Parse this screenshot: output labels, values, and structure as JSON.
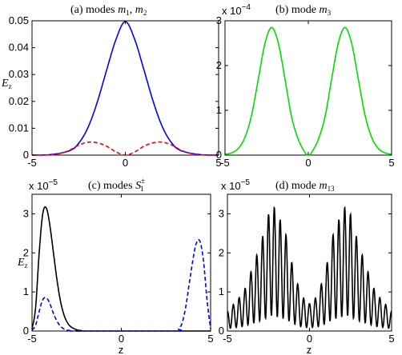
{
  "chart_data": [
    {
      "type": "line",
      "title_text": "(a) modes ",
      "title_m1": "m",
      "title_m1_sub": "1",
      "title_sep": ", ",
      "title_m2": "m",
      "title_m2_sub": "2",
      "ylabel": "E",
      "ylabel_sub": "z",
      "xlim": [
        -5,
        5
      ],
      "ylim": [
        0,
        0.05
      ],
      "xticks": [
        "-5",
        "0",
        "5"
      ],
      "yticks": [
        "0",
        "0.01",
        "0.02",
        "0.03",
        "0.04",
        "0.05"
      ],
      "series": [
        {
          "color": "#0000ff",
          "style": "solid",
          "x": [
            -5,
            -4,
            -3,
            -2.5,
            -2,
            -1.5,
            -1,
            -0.5,
            0,
            0.5,
            1,
            1.5,
            2,
            2.5,
            3,
            4,
            5
          ],
          "y": [
            1e-05,
            0.0002,
            0.0016,
            0.0044,
            0.0103,
            0.0198,
            0.0317,
            0.0431,
            0.0497,
            0.0431,
            0.0317,
            0.0198,
            0.0103,
            0.0044,
            0.0016,
            0.0002,
            1e-05
          ]
        },
        {
          "color": "#ff0000",
          "style": "dashed",
          "x": [
            -5,
            -4,
            -3.5,
            -3,
            -2.5,
            -2,
            -1.5,
            -1,
            -0.5,
            0,
            0.5,
            1,
            1.5,
            2,
            2.5,
            3,
            3.5,
            4,
            5
          ],
          "y": [
            0,
            0.0001,
            0.0006,
            0.0018,
            0.0037,
            0.0048,
            0.0046,
            0.0033,
            0.0012,
            0,
            0.0012,
            0.0033,
            0.0046,
            0.0048,
            0.0037,
            0.0018,
            0.0006,
            0.0001,
            0
          ]
        }
      ]
    },
    {
      "type": "line",
      "title_text": "(b) mode ",
      "title_m": "m",
      "title_m_sub": "3",
      "scale_text": "x 10",
      "scale_exp": "−4",
      "xlim": [
        -5,
        5
      ],
      "ylim": [
        0,
        3
      ],
      "xticks": [
        "-5",
        "0",
        "5"
      ],
      "yticks": [
        "0",
        "1",
        "2",
        "3"
      ],
      "series": [
        {
          "color": "#00dd00",
          "style": "solid",
          "x": [
            -5,
            -4.6,
            -4.2,
            -3.8,
            -3.4,
            -3,
            -2.6,
            -2.2,
            -1.8,
            -1.4,
            -1,
            -0.6,
            -0.2,
            0,
            0.2,
            0.6,
            1,
            1.4,
            1.8,
            2.2,
            2.6,
            3,
            3.4,
            3.8,
            4.2,
            4.6,
            5
          ],
          "y": [
            0.02,
            0.05,
            0.15,
            0.4,
            0.9,
            1.7,
            2.5,
            2.85,
            2.5,
            1.7,
            0.85,
            0.35,
            0.06,
            0,
            0.06,
            0.35,
            0.85,
            1.7,
            2.5,
            2.85,
            2.5,
            1.7,
            0.9,
            0.4,
            0.15,
            0.05,
            0.02
          ]
        }
      ]
    },
    {
      "type": "line",
      "title_text": "(c) modes ",
      "title_s": "S",
      "title_s_sup": "±",
      "title_s_sub": "1",
      "scale_text": "x 10",
      "scale_exp": "−5",
      "ylabel": "E",
      "ylabel_sub": "z",
      "xlabel": "z",
      "xlim": [
        -5,
        5
      ],
      "ylim": [
        0,
        3.5
      ],
      "xticks": [
        "-5",
        "0",
        "5"
      ],
      "yticks": [
        "0",
        "1",
        "2",
        "3"
      ],
      "series": [
        {
          "color": "#000000",
          "style": "solid",
          "x": [
            -5,
            -4.8,
            -4.6,
            -4.4,
            -4.2,
            -4.0,
            -3.8,
            -3.6,
            -3.4,
            -3.2,
            -3.0,
            -2.8,
            -2.6,
            -2.4,
            -2.2,
            -2.0,
            5
          ],
          "y": [
            0.05,
            0.6,
            2.0,
            3.0,
            3.15,
            2.7,
            2.0,
            1.3,
            0.75,
            0.4,
            0.2,
            0.1,
            0.05,
            0.02,
            0.01,
            0,
            0
          ]
        },
        {
          "color": "#0000ff",
          "style": "dashed",
          "x": [
            -5,
            -4.8,
            -4.6,
            -4.4,
            -4.2,
            -4.0,
            -3.8,
            -3.6,
            -3.4,
            -3.2,
            -3.0,
            -2.8,
            -2.6,
            3.0,
            3.2,
            3.4,
            3.6,
            3.8,
            4.0,
            4.2,
            4.4,
            4.6,
            4.8,
            5
          ],
          "y": [
            0.02,
            0.15,
            0.5,
            0.8,
            0.85,
            0.7,
            0.45,
            0.25,
            0.12,
            0.05,
            0.02,
            0.01,
            0,
            0,
            0.05,
            0.2,
            0.6,
            1.2,
            1.8,
            2.25,
            2.3,
            1.8,
            0.8,
            0.05
          ]
        }
      ]
    },
    {
      "type": "line",
      "title_text": "(d) mode ",
      "title_m": "m",
      "title_m_sub": "13",
      "scale_text": "x 10",
      "scale_exp": "−5",
      "xlabel": "z",
      "xlim": [
        -5,
        5
      ],
      "ylim": [
        0,
        3.5
      ],
      "xticks": [
        "-5",
        "0",
        "5"
      ],
      "yticks": [
        "0",
        "1",
        "2",
        "3"
      ],
      "envelope": {
        "x": [
          -5,
          -4,
          -3,
          -2.3,
          -1.5,
          -1,
          -0.5,
          0,
          0.5,
          1,
          1.5,
          2.3,
          3,
          4,
          5
        ],
        "y": [
          0.5,
          1.0,
          2.2,
          3.3,
          2.6,
          1.6,
          0.9,
          0.7,
          0.9,
          1.6,
          2.6,
          3.3,
          2.2,
          1.0,
          0.5
        ]
      },
      "oscillation_count": 28,
      "series": [
        {
          "color": "#000000",
          "style": "solid"
        }
      ]
    }
  ]
}
